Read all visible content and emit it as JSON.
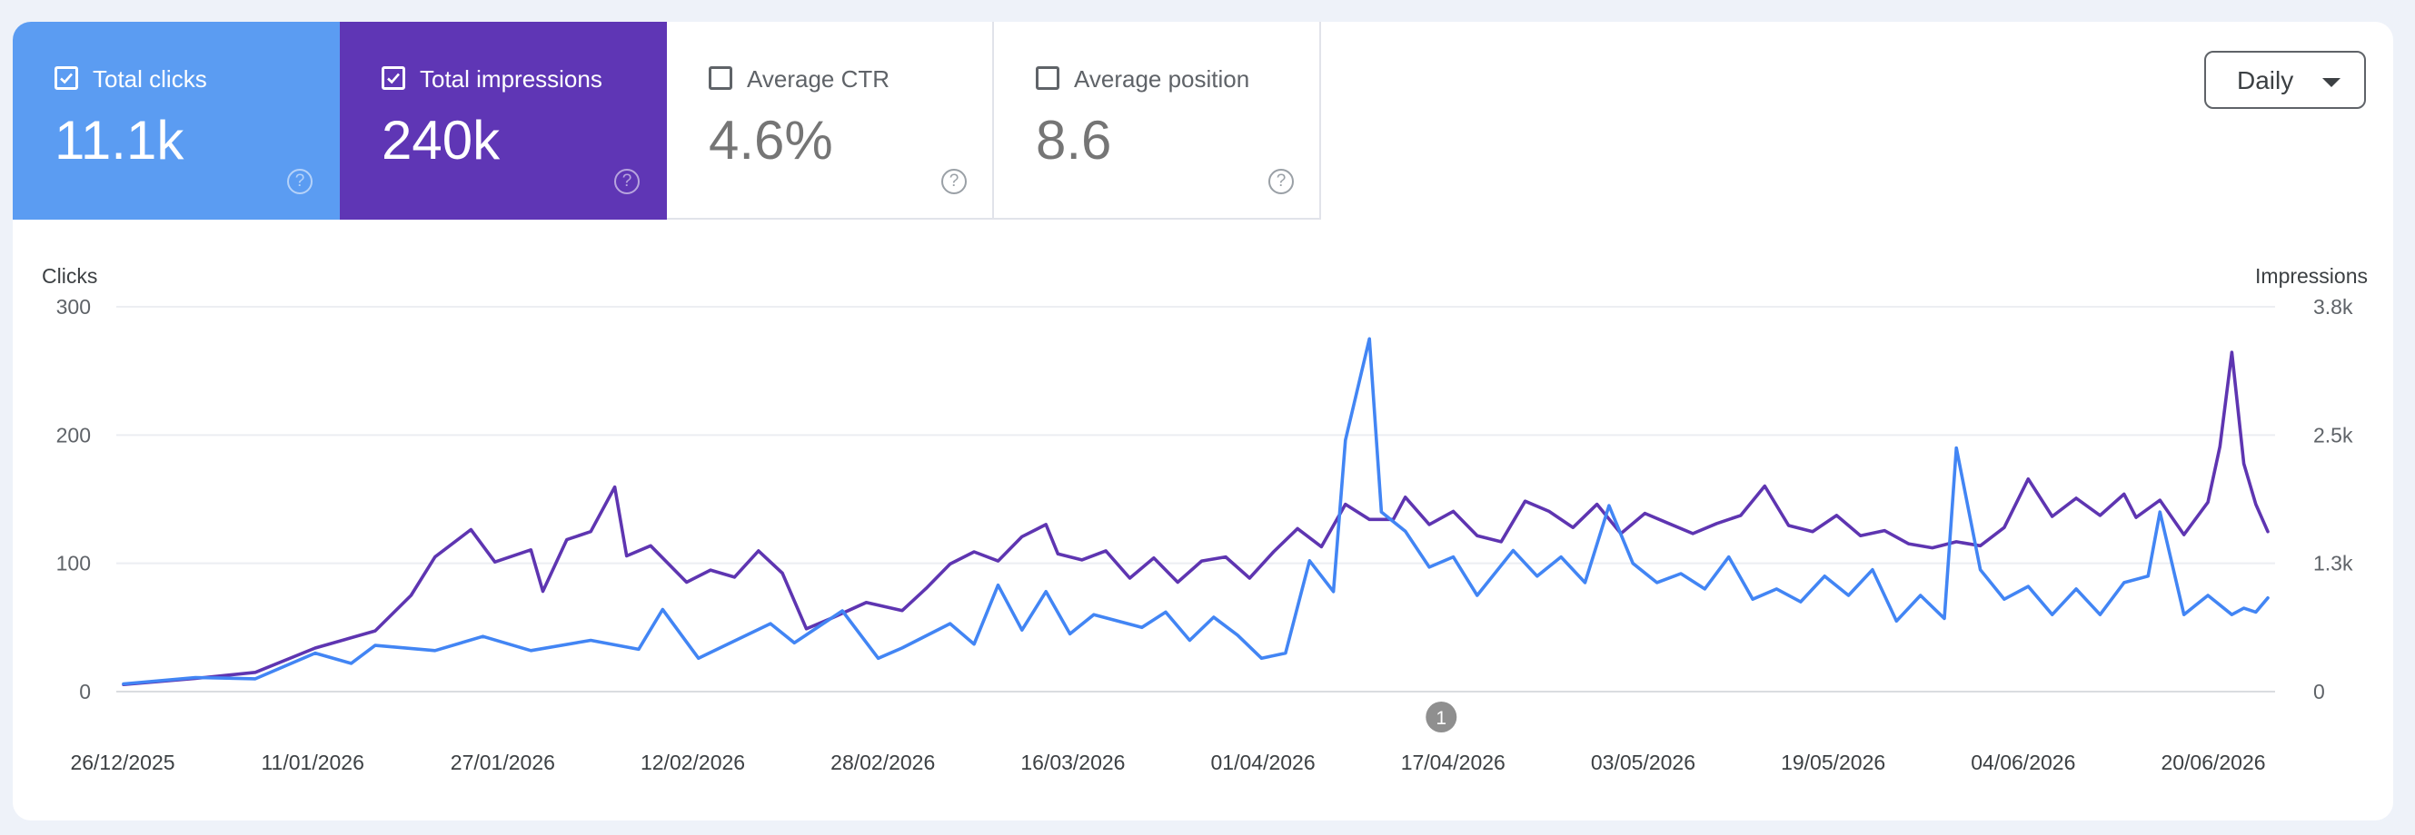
{
  "metrics": [
    {
      "label": "Total clicks",
      "value": "11.1k",
      "checked": true,
      "color": "#5b9cf2"
    },
    {
      "label": "Total impressions",
      "value": "240k",
      "checked": true,
      "color": "#5f36b5"
    },
    {
      "label": "Average CTR",
      "value": "4.6%",
      "checked": false,
      "color": "#ffffff"
    },
    {
      "label": "Average position",
      "value": "8.6",
      "checked": false,
      "color": "#ffffff"
    }
  ],
  "help_glyph": "?",
  "granularity": {
    "selected": "Daily"
  },
  "chart_data": {
    "type": "line",
    "axes": {
      "left": {
        "label": "Clicks",
        "ticks": [
          "300",
          "200",
          "100",
          "0"
        ],
        "range": [
          0,
          300
        ]
      },
      "right": {
        "label": "Impressions",
        "ticks": [
          "3.8k",
          "2.5k",
          "1.3k",
          "0"
        ],
        "range": [
          0,
          3800
        ]
      }
    },
    "x_tick_labels": [
      "26/12/2025",
      "11/01/2026",
      "27/01/2026",
      "12/02/2026",
      "28/02/2026",
      "16/03/2026",
      "01/04/2026",
      "17/04/2026",
      "03/05/2026",
      "19/05/2026",
      "04/06/2026",
      "20/06/2026"
    ],
    "x_range": [
      "2025-12-26",
      "2026-06-23"
    ],
    "annotation": {
      "label": "1",
      "date": "2026-04-15"
    },
    "grid": true,
    "series": [
      {
        "name": "Clicks",
        "axis": "left",
        "color": "#4285f4",
        "points": [
          [
            "2025-12-26",
            6
          ],
          [
            "2026-01-01",
            11
          ],
          [
            "2026-01-06",
            10
          ],
          [
            "2026-01-11",
            30
          ],
          [
            "2026-01-14",
            22
          ],
          [
            "2026-01-16",
            36
          ],
          [
            "2026-01-21",
            32
          ],
          [
            "2026-01-25",
            43
          ],
          [
            "2026-01-29",
            32
          ],
          [
            "2026-02-03",
            40
          ],
          [
            "2026-02-07",
            33
          ],
          [
            "2026-02-09",
            64
          ],
          [
            "2026-02-12",
            26
          ],
          [
            "2026-02-14",
            35
          ],
          [
            "2026-02-18",
            53
          ],
          [
            "2026-02-20",
            38
          ],
          [
            "2026-02-24",
            63
          ],
          [
            "2026-02-27",
            26
          ],
          [
            "2026-03-01",
            34
          ],
          [
            "2026-03-05",
            53
          ],
          [
            "2026-03-07",
            37
          ],
          [
            "2026-03-09",
            83
          ],
          [
            "2026-03-11",
            48
          ],
          [
            "2026-03-13",
            78
          ],
          [
            "2026-03-15",
            45
          ],
          [
            "2026-03-17",
            60
          ],
          [
            "2026-03-21",
            50
          ],
          [
            "2026-03-23",
            62
          ],
          [
            "2026-03-25",
            40
          ],
          [
            "2026-03-27",
            58
          ],
          [
            "2026-03-29",
            44
          ],
          [
            "2026-03-31",
            26
          ],
          [
            "2026-04-02",
            30
          ],
          [
            "2026-04-04",
            102
          ],
          [
            "2026-04-06",
            78
          ],
          [
            "2026-04-07",
            196
          ],
          [
            "2026-04-09",
            275
          ],
          [
            "2026-04-10",
            140
          ],
          [
            "2026-04-12",
            125
          ],
          [
            "2026-04-14",
            97
          ],
          [
            "2026-04-16",
            105
          ],
          [
            "2026-04-18",
            75
          ],
          [
            "2026-04-21",
            110
          ],
          [
            "2026-04-23",
            90
          ],
          [
            "2026-04-25",
            105
          ],
          [
            "2026-04-27",
            85
          ],
          [
            "2026-04-29",
            145
          ],
          [
            "2026-05-01",
            100
          ],
          [
            "2026-05-03",
            85
          ],
          [
            "2026-05-05",
            92
          ],
          [
            "2026-05-07",
            80
          ],
          [
            "2026-05-09",
            105
          ],
          [
            "2026-05-11",
            72
          ],
          [
            "2026-05-13",
            80
          ],
          [
            "2026-05-15",
            70
          ],
          [
            "2026-05-17",
            90
          ],
          [
            "2026-05-19",
            75
          ],
          [
            "2026-05-21",
            95
          ],
          [
            "2026-05-23",
            55
          ],
          [
            "2026-05-25",
            75
          ],
          [
            "2026-05-27",
            57
          ],
          [
            "2026-05-28",
            190
          ],
          [
            "2026-05-30",
            95
          ],
          [
            "2026-06-01",
            72
          ],
          [
            "2026-06-03",
            82
          ],
          [
            "2026-06-05",
            60
          ],
          [
            "2026-06-07",
            80
          ],
          [
            "2026-06-09",
            60
          ],
          [
            "2026-06-11",
            85
          ],
          [
            "2026-06-13",
            90
          ],
          [
            "2026-06-14",
            140
          ],
          [
            "2026-06-16",
            60
          ],
          [
            "2026-06-18",
            75
          ],
          [
            "2026-06-20",
            60
          ],
          [
            "2026-06-21",
            65
          ],
          [
            "2026-06-22",
            62
          ],
          [
            "2026-06-23",
            73
          ]
        ]
      },
      {
        "name": "Impressions",
        "axis": "right",
        "color": "#5e35b1",
        "points": [
          [
            "2025-12-26",
            70
          ],
          [
            "2026-01-01",
            130
          ],
          [
            "2026-01-06",
            190
          ],
          [
            "2026-01-11",
            430
          ],
          [
            "2026-01-16",
            600
          ],
          [
            "2026-01-19",
            950
          ],
          [
            "2026-01-21",
            1330
          ],
          [
            "2026-01-24",
            1600
          ],
          [
            "2026-01-26",
            1280
          ],
          [
            "2026-01-29",
            1400
          ],
          [
            "2026-01-30",
            990
          ],
          [
            "2026-02-01",
            1500
          ],
          [
            "2026-02-03",
            1580
          ],
          [
            "2026-02-05",
            2020
          ],
          [
            "2026-02-06",
            1340
          ],
          [
            "2026-02-08",
            1440
          ],
          [
            "2026-02-11",
            1080
          ],
          [
            "2026-02-13",
            1200
          ],
          [
            "2026-02-15",
            1130
          ],
          [
            "2026-02-17",
            1390
          ],
          [
            "2026-02-19",
            1170
          ],
          [
            "2026-02-21",
            620
          ],
          [
            "2026-02-23",
            720
          ],
          [
            "2026-02-26",
            880
          ],
          [
            "2026-03-01",
            800
          ],
          [
            "2026-03-03",
            1020
          ],
          [
            "2026-03-05",
            1260
          ],
          [
            "2026-03-07",
            1380
          ],
          [
            "2026-03-09",
            1290
          ],
          [
            "2026-03-11",
            1530
          ],
          [
            "2026-03-13",
            1650
          ],
          [
            "2026-03-14",
            1360
          ],
          [
            "2026-03-16",
            1300
          ],
          [
            "2026-03-18",
            1390
          ],
          [
            "2026-03-20",
            1120
          ],
          [
            "2026-03-22",
            1320
          ],
          [
            "2026-03-24",
            1080
          ],
          [
            "2026-03-26",
            1290
          ],
          [
            "2026-03-28",
            1330
          ],
          [
            "2026-03-30",
            1120
          ],
          [
            "2026-04-01",
            1380
          ],
          [
            "2026-04-03",
            1610
          ],
          [
            "2026-04-05",
            1430
          ],
          [
            "2026-04-07",
            1850
          ],
          [
            "2026-04-09",
            1700
          ],
          [
            "2026-04-11",
            1700
          ],
          [
            "2026-04-12",
            1920
          ],
          [
            "2026-04-14",
            1650
          ],
          [
            "2026-04-16",
            1780
          ],
          [
            "2026-04-18",
            1540
          ],
          [
            "2026-04-20",
            1480
          ],
          [
            "2026-04-22",
            1880
          ],
          [
            "2026-04-24",
            1780
          ],
          [
            "2026-04-26",
            1620
          ],
          [
            "2026-04-28",
            1850
          ],
          [
            "2026-04-30",
            1560
          ],
          [
            "2026-05-02",
            1760
          ],
          [
            "2026-05-04",
            1660
          ],
          [
            "2026-05-06",
            1560
          ],
          [
            "2026-05-08",
            1660
          ],
          [
            "2026-05-10",
            1740
          ],
          [
            "2026-05-12",
            2030
          ],
          [
            "2026-05-14",
            1640
          ],
          [
            "2026-05-16",
            1580
          ],
          [
            "2026-05-18",
            1740
          ],
          [
            "2026-05-20",
            1540
          ],
          [
            "2026-05-22",
            1590
          ],
          [
            "2026-05-24",
            1460
          ],
          [
            "2026-05-26",
            1420
          ],
          [
            "2026-05-28",
            1480
          ],
          [
            "2026-05-30",
            1440
          ],
          [
            "2026-06-01",
            1620
          ],
          [
            "2026-06-03",
            2100
          ],
          [
            "2026-06-05",
            1730
          ],
          [
            "2026-06-07",
            1910
          ],
          [
            "2026-06-09",
            1740
          ],
          [
            "2026-06-11",
            1950
          ],
          [
            "2026-06-12",
            1720
          ],
          [
            "2026-06-14",
            1890
          ],
          [
            "2026-06-16",
            1550
          ],
          [
            "2026-06-18",
            1870
          ],
          [
            "2026-06-19",
            2420
          ],
          [
            "2026-06-20",
            3350
          ],
          [
            "2026-06-21",
            2250
          ],
          [
            "2026-06-22",
            1850
          ],
          [
            "2026-06-23",
            1580
          ]
        ]
      }
    ]
  }
}
